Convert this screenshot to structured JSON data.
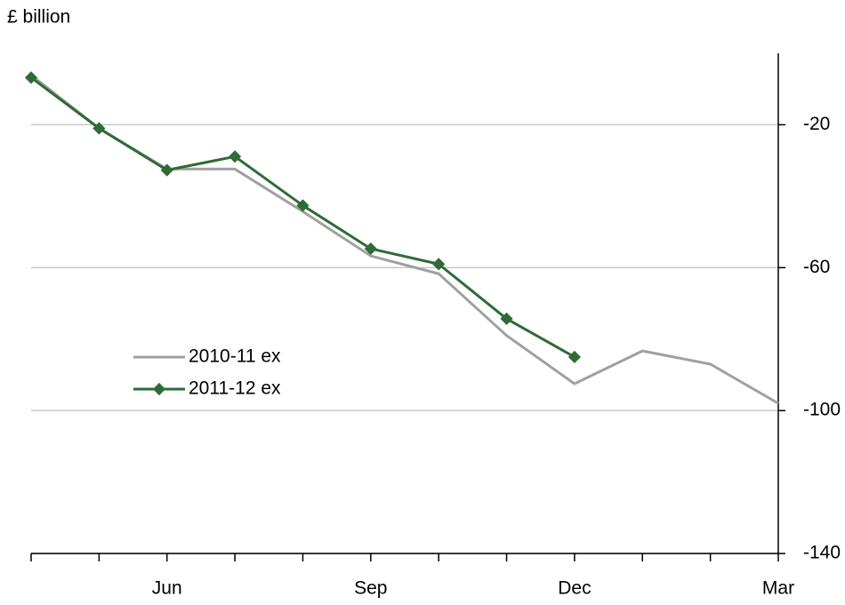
{
  "chart_data": {
    "type": "line",
    "y_label": "£ billion",
    "categories": [
      null,
      null,
      "Jun",
      null,
      null,
      "Sep",
      null,
      null,
      "Dec",
      null,
      null,
      "Mar"
    ],
    "series": [
      {
        "name": "2010-11 ex",
        "color": "#a0a0a0",
        "marker": false,
        "values": [
          -6.1,
          -21,
          -32.4,
          -32.4,
          -44.3,
          -56.7,
          -61.7,
          -79,
          -92.5,
          -83.3,
          -87,
          -98
        ]
      },
      {
        "name": "2011-12 ex",
        "color": "#2e6b35",
        "marker": true,
        "values": [
          -6.8,
          -21,
          -32.7,
          -28.9,
          -42.6,
          -54.7,
          -59,
          -74.3,
          -85,
          null,
          null,
          null
        ]
      }
    ],
    "ylim": [
      -140,
      0
    ],
    "yticks": [
      -140,
      -100,
      -60,
      -20
    ],
    "grid": true,
    "y_axis_side": "right",
    "legend": "left"
  }
}
